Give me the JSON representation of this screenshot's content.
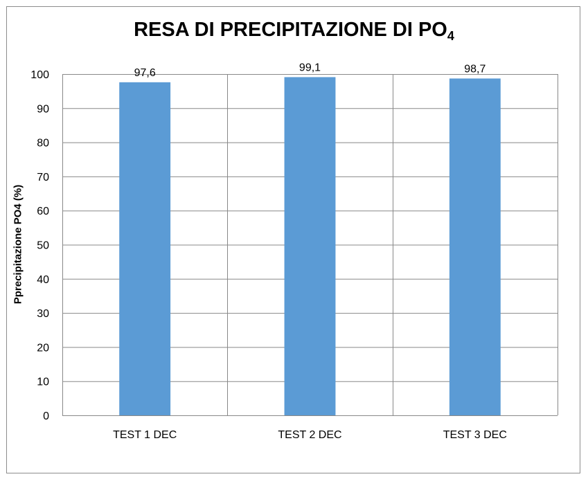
{
  "chart_data": {
    "type": "bar",
    "title": "RESA DI PRECIPITAZIONE DI PO",
    "title_subscript": "4",
    "xlabel": "",
    "ylabel": "Pprecipitazione PO4 (%)",
    "categories": [
      "TEST 1 DEC",
      "TEST 2 DEC",
      "TEST 3 DEC"
    ],
    "values": [
      97.6,
      99.1,
      98.7
    ],
    "data_labels": [
      "97,6",
      "99,1",
      "98,7"
    ],
    "ylim": [
      0,
      100
    ],
    "yticks": [
      0,
      10,
      20,
      30,
      40,
      50,
      60,
      70,
      80,
      90,
      100
    ],
    "grid": true,
    "bar_color": "#5b9bd5",
    "grid_color": "#888888"
  }
}
